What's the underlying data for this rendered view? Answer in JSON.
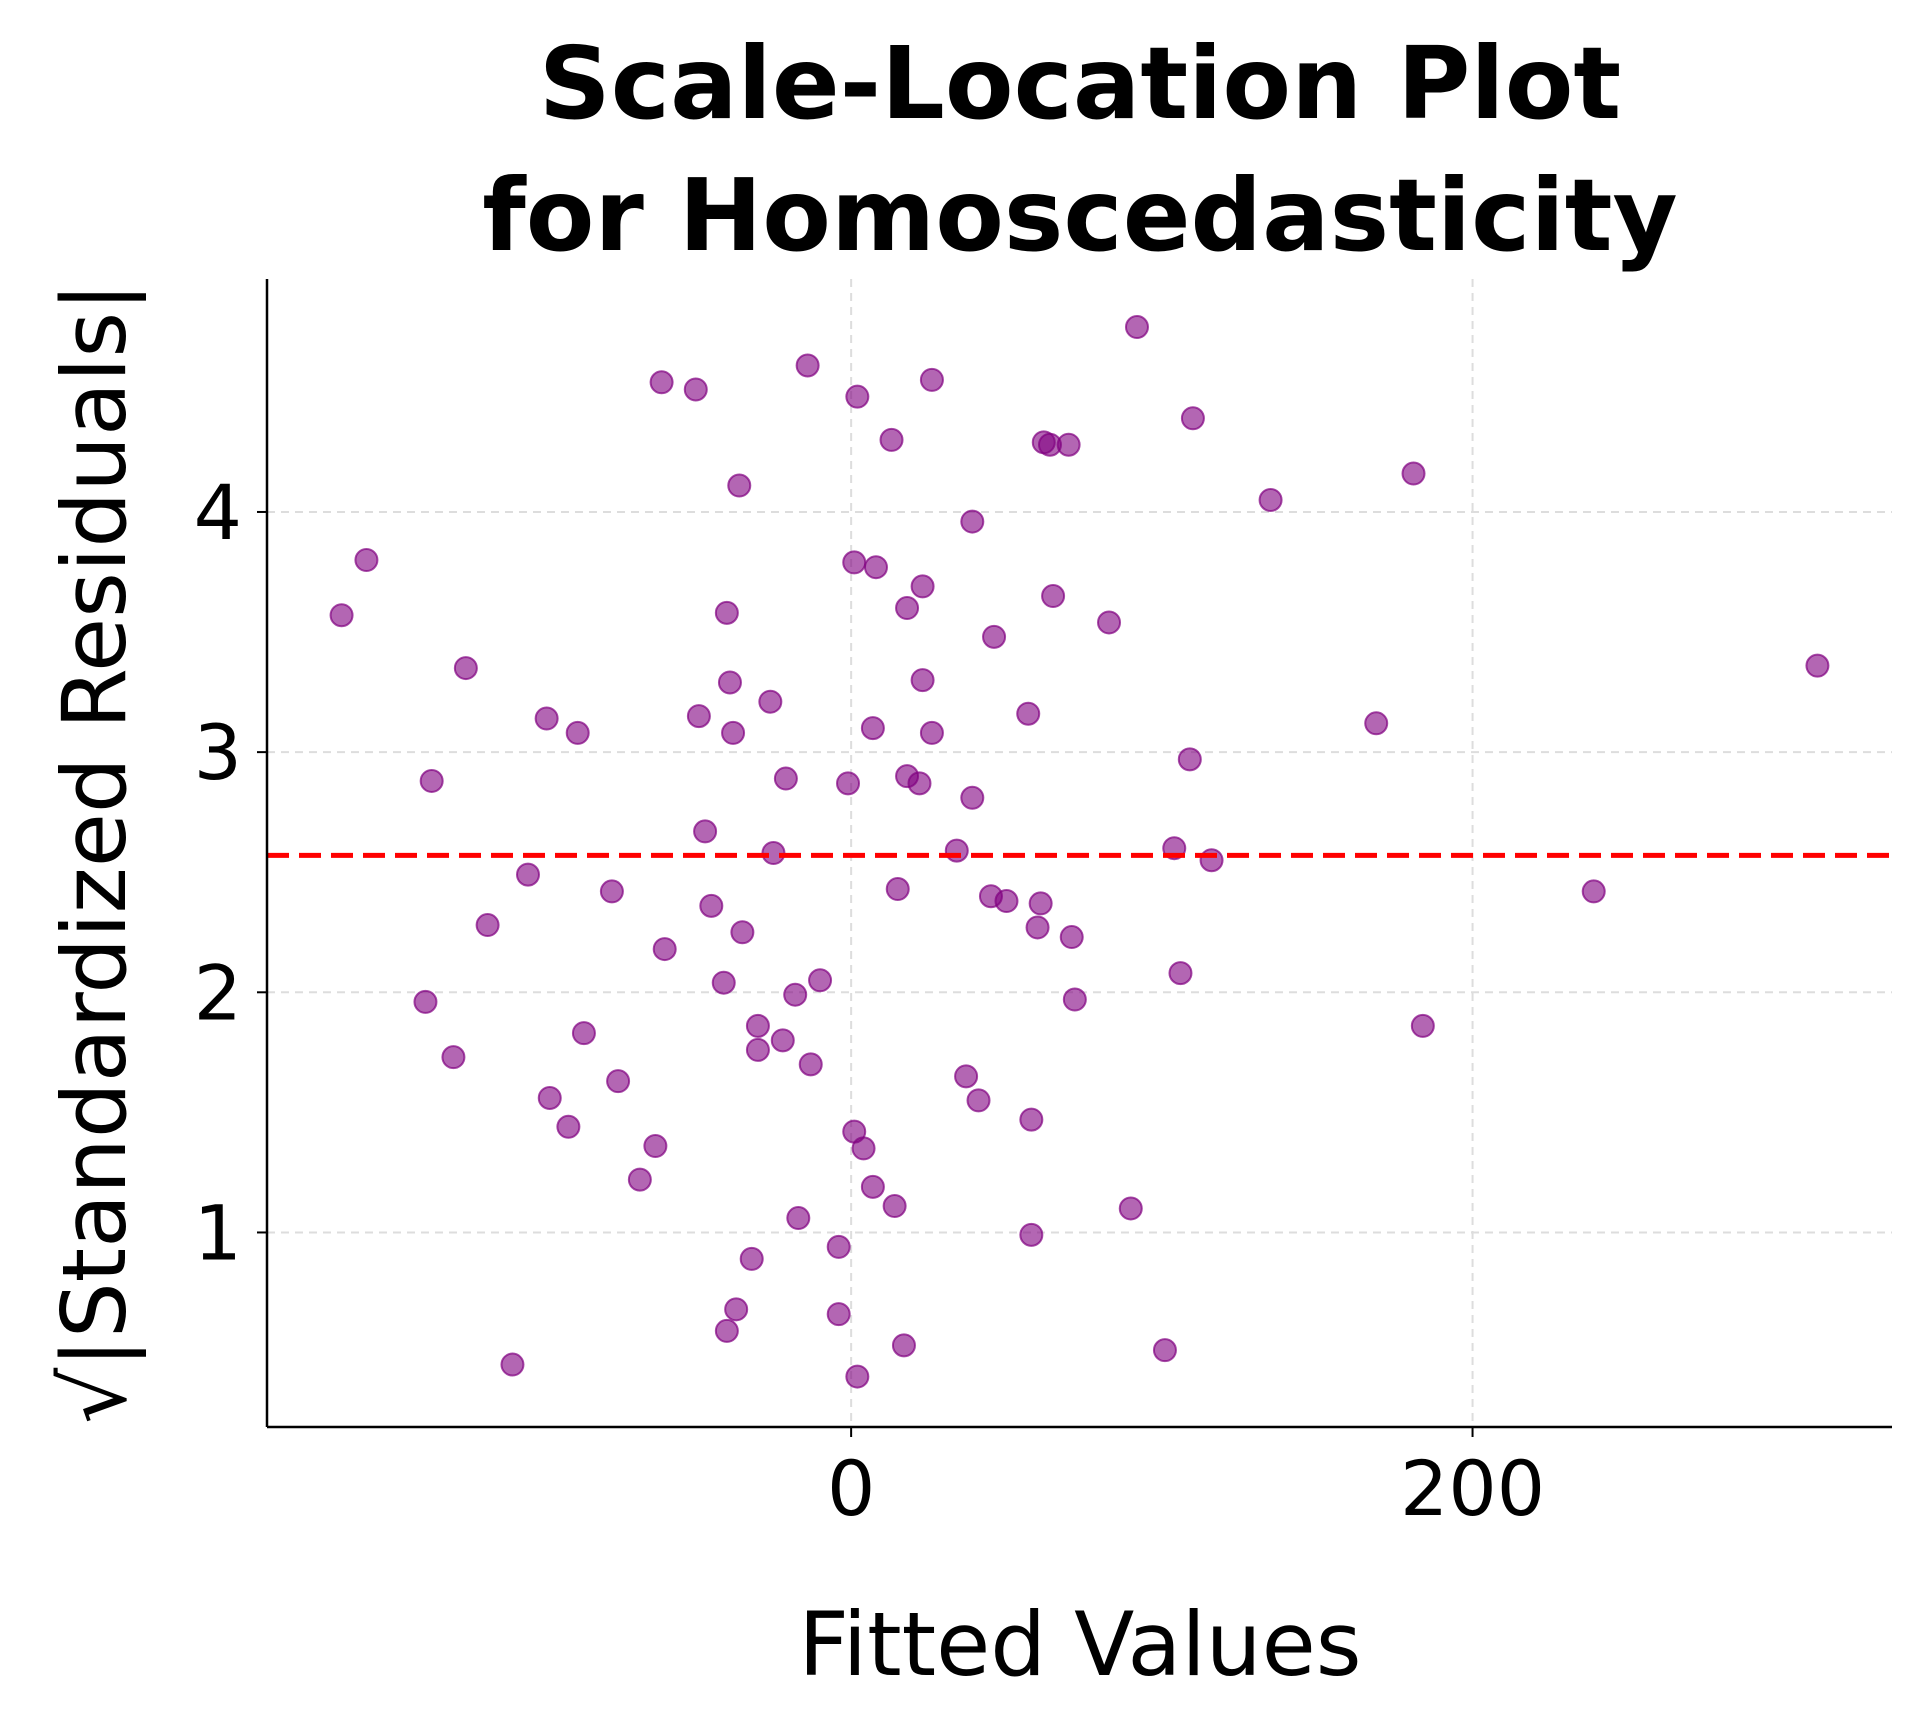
{
  "chart_data": {
    "type": "scatter",
    "title_lines": [
      "Scale-Location Plot",
      "for Homoscedasticity"
    ],
    "xlabel": "Fitted Values",
    "ylabel": "√|Standardized Residuals|",
    "xlim": [
      -188,
      335
    ],
    "ylim": [
      0.19,
      4.97
    ],
    "xticks": [
      0,
      200
    ],
    "yticks": [
      1,
      2,
      3,
      4
    ],
    "grid": true,
    "point_color": "#800080",
    "reference_line": {
      "y": 2.57,
      "color": "#ff0000",
      "style": "dashed"
    },
    "points": [
      [
        -164,
        3.57
      ],
      [
        -156,
        3.8
      ],
      [
        -124,
        3.35
      ],
      [
        -135,
        2.88
      ],
      [
        -98,
        3.14
      ],
      [
        -88,
        3.08
      ],
      [
        -104,
        2.49
      ],
      [
        -117,
        2.28
      ],
      [
        -77,
        2.42
      ],
      [
        -137,
        1.96
      ],
      [
        -128,
        1.73
      ],
      [
        -86,
        1.83
      ],
      [
        -97,
        1.56
      ],
      [
        -91,
        1.44
      ],
      [
        -75,
        1.63
      ],
      [
        -63,
        1.36
      ],
      [
        -68,
        1.22
      ],
      [
        -109,
        0.45
      ],
      [
        -61,
        4.54
      ],
      [
        -50,
        4.51
      ],
      [
        -14,
        4.61
      ],
      [
        2,
        4.48
      ],
      [
        26,
        4.55
      ],
      [
        13,
        4.3
      ],
      [
        62,
        4.29
      ],
      [
        64,
        4.28
      ],
      [
        70,
        4.28
      ],
      [
        92,
        4.77
      ],
      [
        110,
        4.39
      ],
      [
        181,
        4.16
      ],
      [
        135,
        4.05
      ],
      [
        -36,
        4.11
      ],
      [
        39,
        3.96
      ],
      [
        1,
        3.79
      ],
      [
        8,
        3.77
      ],
      [
        23,
        3.69
      ],
      [
        18,
        3.6
      ],
      [
        -40,
        3.58
      ],
      [
        65,
        3.65
      ],
      [
        83,
        3.54
      ],
      [
        46,
        3.48
      ],
      [
        -39,
        3.29
      ],
      [
        23,
        3.3
      ],
      [
        -26,
        3.21
      ],
      [
        -49,
        3.15
      ],
      [
        -38,
        3.08
      ],
      [
        7,
        3.1
      ],
      [
        26,
        3.08
      ],
      [
        57,
        3.16
      ],
      [
        169,
        3.12
      ],
      [
        311,
        3.36
      ],
      [
        -21,
        2.89
      ],
      [
        -1,
        2.87
      ],
      [
        18,
        2.9
      ],
      [
        22,
        2.87
      ],
      [
        39,
        2.81
      ],
      [
        109,
        2.97
      ],
      [
        -47,
        2.67
      ],
      [
        -25,
        2.58
      ],
      [
        34,
        2.59
      ],
      [
        104,
        2.6
      ],
      [
        116,
        2.55
      ],
      [
        -45,
        2.36
      ],
      [
        -35,
        2.25
      ],
      [
        15,
        2.43
      ],
      [
        45,
        2.4
      ],
      [
        50,
        2.38
      ],
      [
        61,
        2.37
      ],
      [
        60,
        2.27
      ],
      [
        71,
        2.23
      ],
      [
        239,
        2.42
      ],
      [
        -60,
        2.18
      ],
      [
        -41,
        2.04
      ],
      [
        -10,
        2.05
      ],
      [
        -18,
        1.99
      ],
      [
        72,
        1.97
      ],
      [
        106,
        2.08
      ],
      [
        184,
        1.86
      ],
      [
        -30,
        1.86
      ],
      [
        -22,
        1.8
      ],
      [
        -30,
        1.76
      ],
      [
        -13,
        1.7
      ],
      [
        37,
        1.65
      ],
      [
        41,
        1.55
      ],
      [
        58,
        1.47
      ],
      [
        1,
        1.42
      ],
      [
        4,
        1.35
      ],
      [
        7,
        1.19
      ],
      [
        14,
        1.11
      ],
      [
        -17,
        1.06
      ],
      [
        90,
        1.1
      ],
      [
        58,
        0.99
      ],
      [
        -4,
        0.94
      ],
      [
        -32,
        0.89
      ],
      [
        -37,
        0.68
      ],
      [
        -40,
        0.59
      ],
      [
        -4,
        0.66
      ],
      [
        17,
        0.53
      ],
      [
        101,
        0.51
      ],
      [
        2,
        0.4
      ]
    ]
  }
}
